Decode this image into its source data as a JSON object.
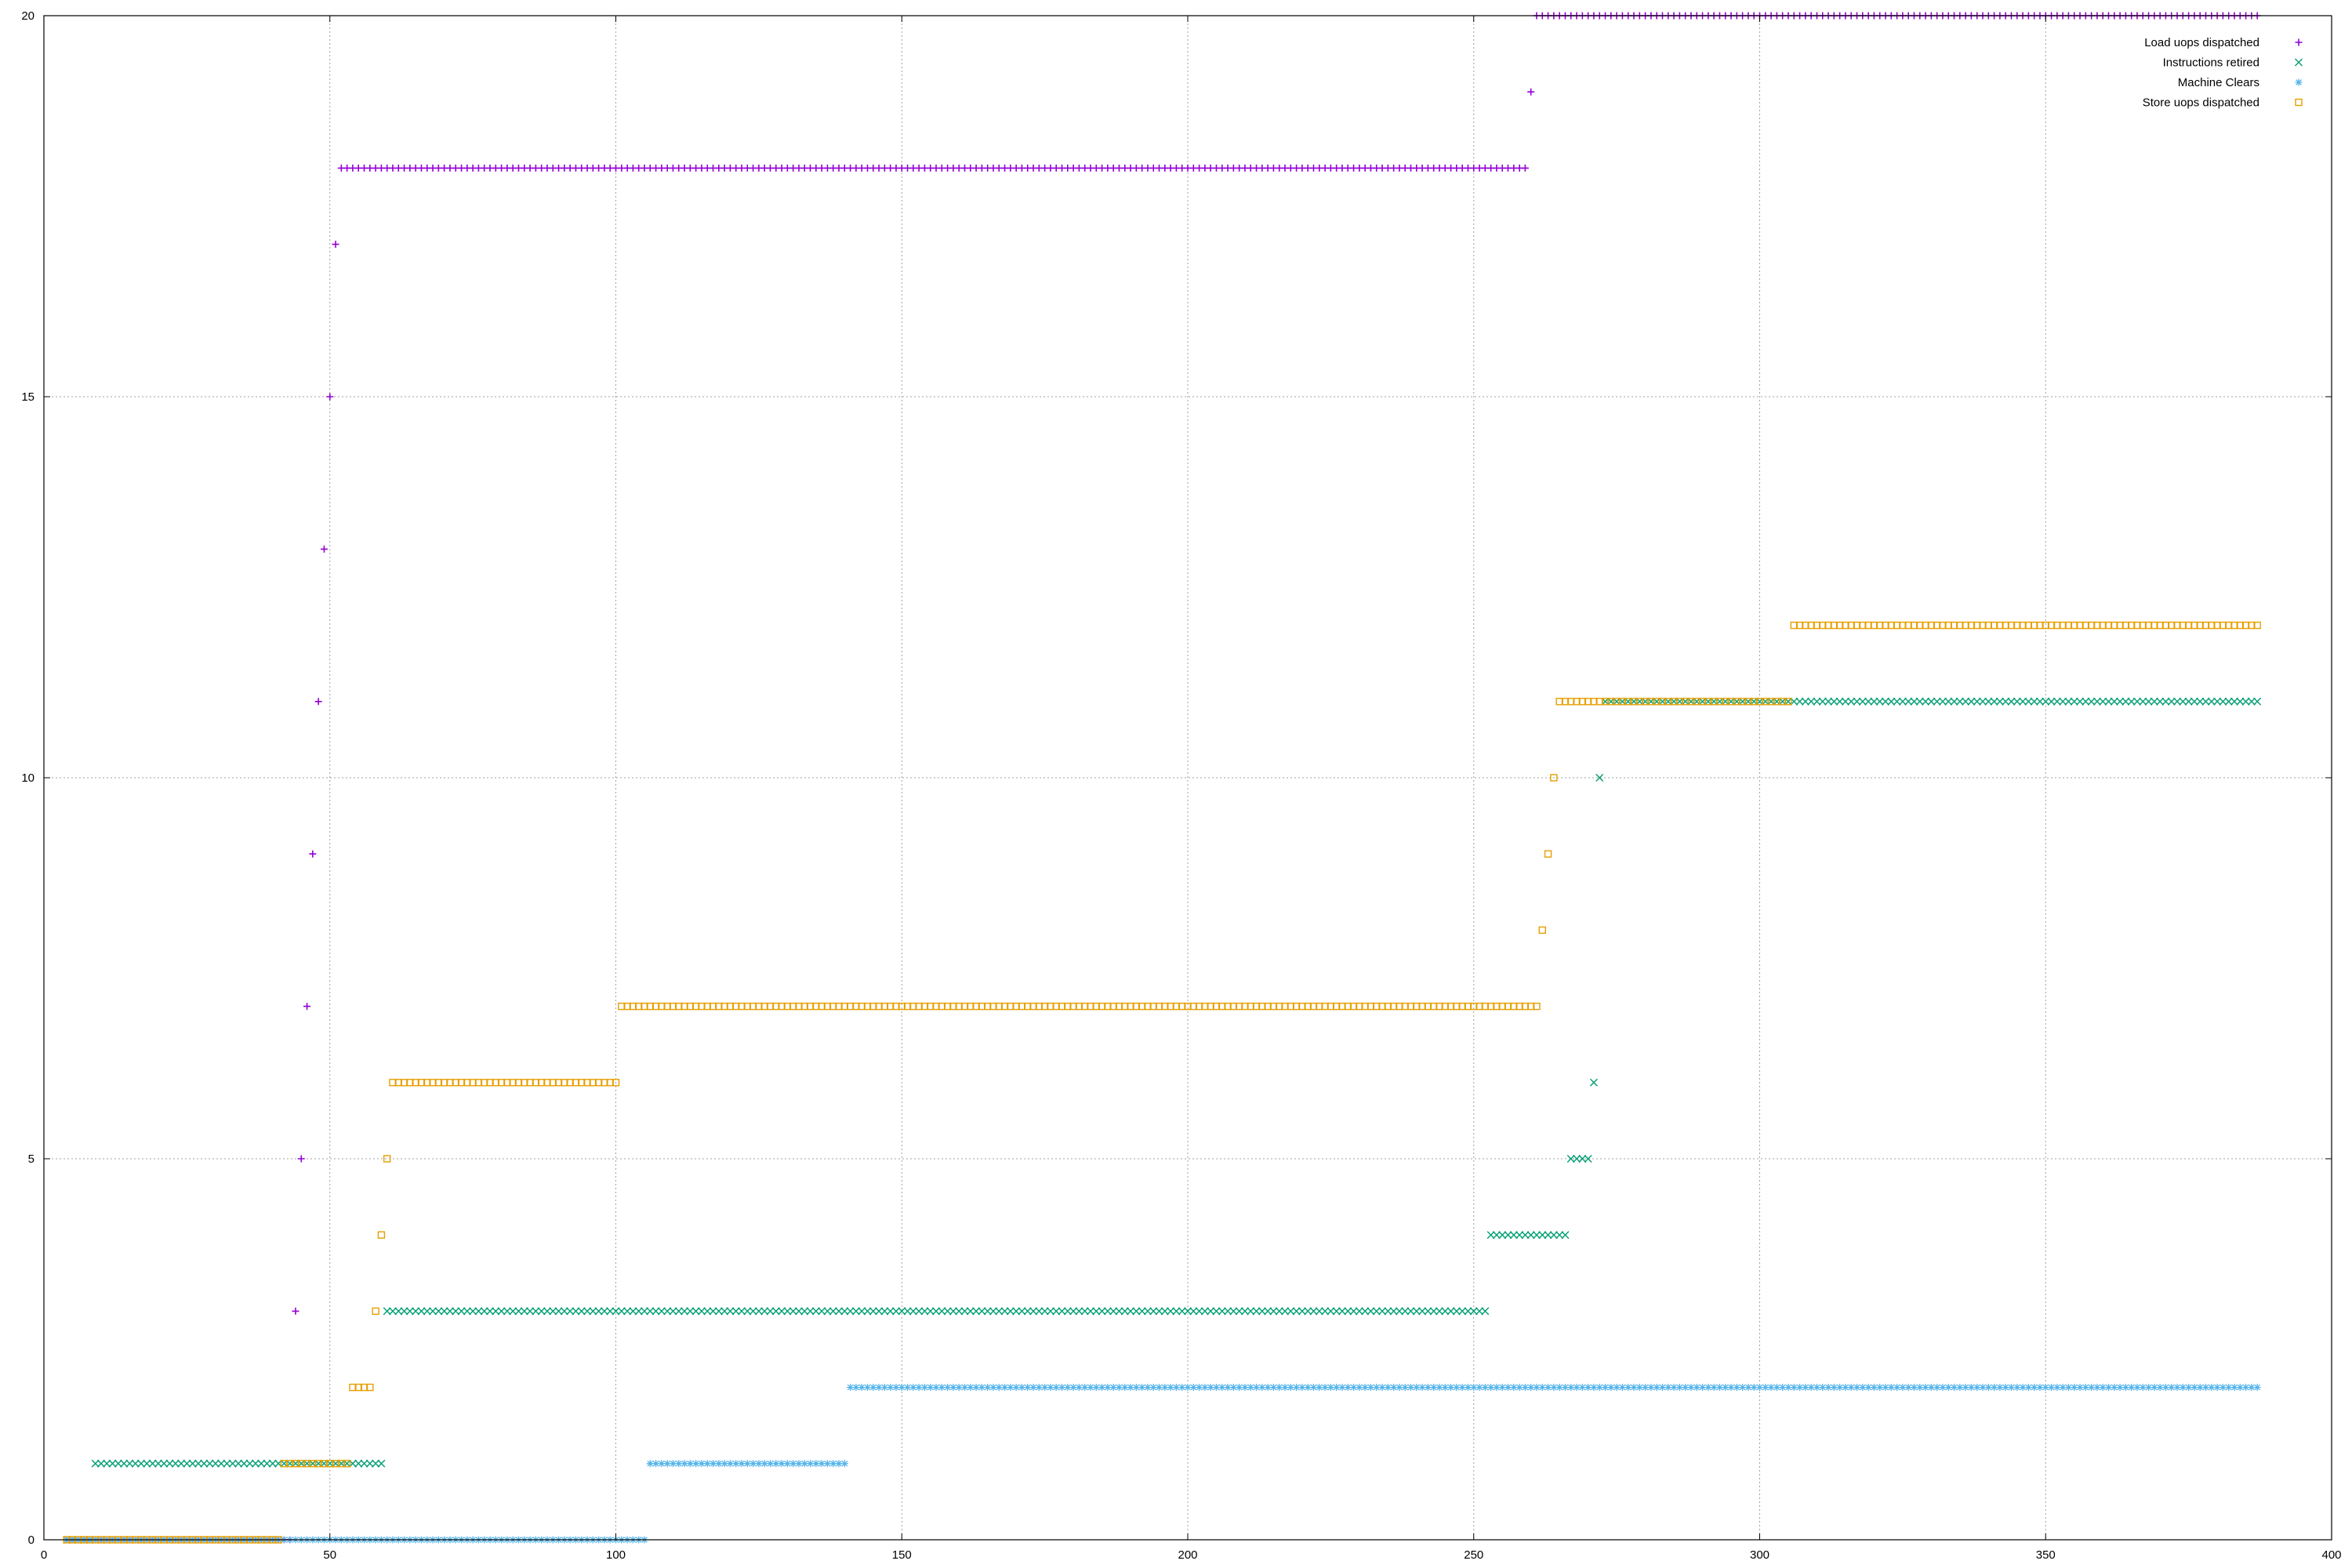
{
  "chart_data": {
    "type": "scatter",
    "title": "",
    "xlabel": "",
    "ylabel": "",
    "xlim": [
      0,
      400
    ],
    "ylim": [
      0,
      20
    ],
    "x_ticks": [
      0,
      50,
      100,
      150,
      200,
      250,
      300,
      350,
      400
    ],
    "y_ticks": [
      0,
      5,
      10,
      15,
      20
    ],
    "x_tick_labels": [
      "0",
      "50",
      "100",
      "150",
      "200",
      "250",
      "300",
      "350",
      "400"
    ],
    "y_tick_labels": [
      "0",
      "5",
      "10",
      "15",
      "20"
    ],
    "grid": true,
    "legend_position": "top-right",
    "series": [
      {
        "name": "Load uops dispatched",
        "marker": "plus",
        "color": "#9400d3",
        "runs": [
          {
            "x_start": 4,
            "x_end": 43,
            "y": 0
          },
          {
            "x_start": 44,
            "x_end": 44,
            "y": 3
          },
          {
            "x_start": 45,
            "x_end": 45,
            "y": 5
          },
          {
            "x_start": 46,
            "x_end": 46,
            "y": 7
          },
          {
            "x_start": 47,
            "x_end": 47,
            "y": 9
          },
          {
            "x_start": 48,
            "x_end": 48,
            "y": 11
          },
          {
            "x_start": 49,
            "x_end": 49,
            "y": 13
          },
          {
            "x_start": 50,
            "x_end": 50,
            "y": 15
          },
          {
            "x_start": 51,
            "x_end": 51,
            "y": 17
          },
          {
            "x_start": 52,
            "x_end": 259,
            "y": 18
          },
          {
            "x_start": 260,
            "x_end": 260,
            "y": 19
          },
          {
            "x_start": 261,
            "x_end": 387,
            "y": 20
          }
        ]
      },
      {
        "name": "Instructions retired",
        "marker": "cross",
        "color": "#009e73",
        "runs": [
          {
            "x_start": 4,
            "x_end": 8,
            "y": 0
          },
          {
            "x_start": 9,
            "x_end": 59,
            "y": 1
          },
          {
            "x_start": 60,
            "x_end": 252,
            "y": 3
          },
          {
            "x_start": 253,
            "x_end": 266,
            "y": 4
          },
          {
            "x_start": 267,
            "x_end": 270,
            "y": 5
          },
          {
            "x_start": 271,
            "x_end": 271,
            "y": 6
          },
          {
            "x_start": 272,
            "x_end": 272,
            "y": 10
          },
          {
            "x_start": 273,
            "x_end": 387,
            "y": 11
          }
        ]
      },
      {
        "name": "Machine Clears",
        "marker": "star",
        "color": "#56b4e9",
        "runs": [
          {
            "x_start": 4,
            "x_end": 105,
            "y": 0
          },
          {
            "x_start": 106,
            "x_end": 140,
            "y": 1
          },
          {
            "x_start": 141,
            "x_end": 387,
            "y": 2
          }
        ]
      },
      {
        "name": "Store uops dispatched",
        "marker": "square",
        "color": "#e69f00",
        "runs": [
          {
            "x_start": 4,
            "x_end": 41,
            "y": 0
          },
          {
            "x_start": 42,
            "x_end": 53,
            "y": 1
          },
          {
            "x_start": 54,
            "x_end": 57,
            "y": 2
          },
          {
            "x_start": 58,
            "x_end": 58,
            "y": 3
          },
          {
            "x_start": 59,
            "x_end": 59,
            "y": 4
          },
          {
            "x_start": 60,
            "x_end": 60,
            "y": 5
          },
          {
            "x_start": 61,
            "x_end": 100,
            "y": 6
          },
          {
            "x_start": 101,
            "x_end": 261,
            "y": 7
          },
          {
            "x_start": 262,
            "x_end": 262,
            "y": 8
          },
          {
            "x_start": 263,
            "x_end": 263,
            "y": 9
          },
          {
            "x_start": 264,
            "x_end": 264,
            "y": 10
          },
          {
            "x_start": 265,
            "x_end": 305,
            "y": 11
          },
          {
            "x_start": 306,
            "x_end": 387,
            "y": 12
          }
        ]
      }
    ]
  }
}
